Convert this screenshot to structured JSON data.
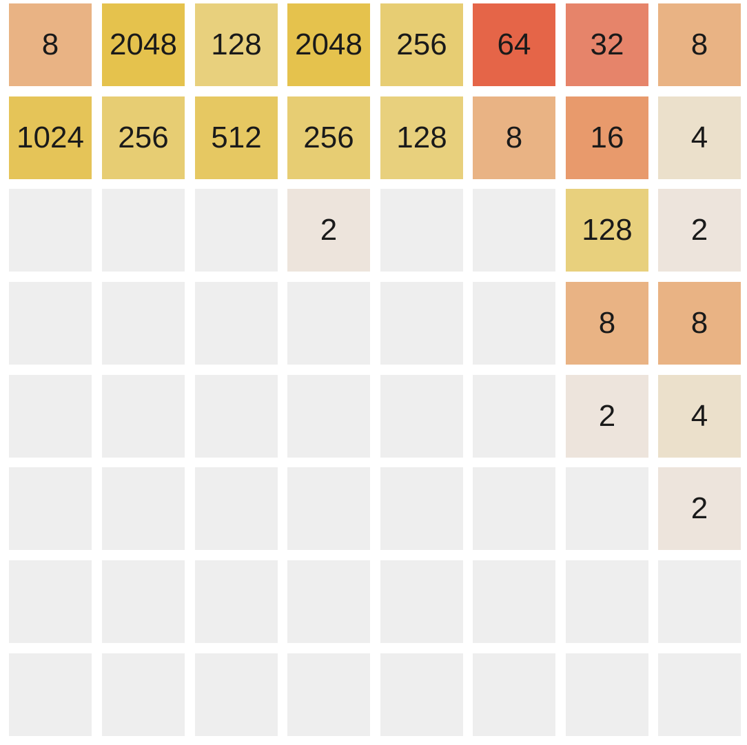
{
  "board": {
    "rows": [
      [
        "8",
        "2048",
        "128",
        "2048",
        "256",
        "64",
        "32",
        "8"
      ],
      [
        "1024",
        "256",
        "512",
        "256",
        "128",
        "8",
        "16",
        "4"
      ],
      [
        "",
        "",
        "",
        "2",
        "",
        "",
        "128",
        "2"
      ],
      [
        "",
        "",
        "",
        "",
        "",
        "",
        "8",
        "8"
      ],
      [
        "",
        "",
        "",
        "",
        "",
        "",
        "2",
        "4"
      ],
      [
        "",
        "",
        "",
        "",
        "",
        "",
        "",
        "2"
      ],
      [
        "",
        "",
        "",
        "",
        "",
        "",
        "",
        ""
      ],
      [
        "",
        "",
        "",
        "",
        "",
        "",
        "",
        ""
      ]
    ]
  },
  "tile_colors": {
    "empty": "#eeeeee",
    "2": "#ede4dc",
    "4": "#ebe0cb",
    "8": "#e9b384",
    "16": "#e89a6c",
    "32": "#e6846a",
    "64": "#e56548",
    "128": "#e8d07d",
    "256": "#e7cd73",
    "512": "#e6c862",
    "1024": "#e5c458",
    "2048": "#e5c24d"
  }
}
